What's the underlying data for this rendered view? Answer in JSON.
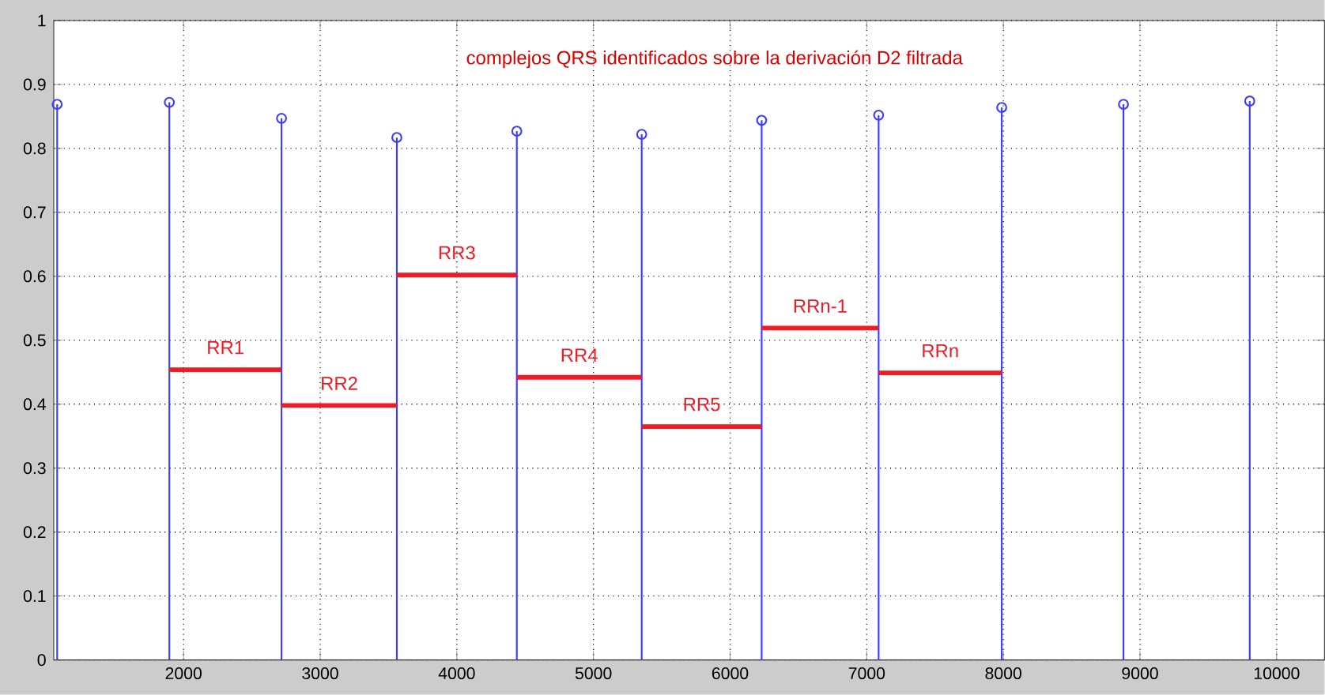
{
  "chart_data": {
    "type": "lollipop",
    "annotations": [
      "complejos QRS identificados sobre la derivación D2 filtrada"
    ],
    "xlim": [
      1050,
      10350
    ],
    "ylim": [
      0,
      1
    ],
    "xticks": [
      2000,
      3000,
      4000,
      5000,
      6000,
      7000,
      8000,
      9000,
      10000
    ],
    "yticks": [
      0,
      0.1,
      0.2,
      0.3,
      0.4,
      0.5,
      0.6,
      0.7,
      0.8,
      0.9,
      1
    ],
    "grid": true,
    "series": [
      {
        "marker": "circle",
        "color": "#3c3cff",
        "x": [
          1075,
          1896,
          2717,
          3561,
          4439,
          5353,
          6231,
          7087,
          7988,
          8879,
          9803
        ],
        "values": [
          0.869,
          0.872,
          0.847,
          0.817,
          0.827,
          0.822,
          0.844,
          0.852,
          0.864,
          0.869,
          0.874
        ]
      },
      {
        "type": "line",
        "name": "RR1",
        "color": "#ee1c25",
        "x": [
          1896,
          2717
        ],
        "values": [
          0.454,
          0.454
        ]
      },
      {
        "type": "line",
        "name": "RR2",
        "color": "#ee1c25",
        "x": [
          2717,
          3561
        ],
        "values": [
          0.398,
          0.398
        ]
      },
      {
        "type": "line",
        "name": "RR3",
        "color": "#ee1c25",
        "x": [
          3561,
          4439
        ],
        "values": [
          0.602,
          0.602
        ]
      },
      {
        "type": "line",
        "name": "RR4",
        "color": "#ee1c25",
        "x": [
          4439,
          5353
        ],
        "values": [
          0.442,
          0.442
        ]
      },
      {
        "type": "line",
        "name": "RR5",
        "color": "#ee1c25",
        "x": [
          5353,
          6231
        ],
        "values": [
          0.365,
          0.365
        ]
      },
      {
        "type": "line",
        "name": "RRn-1",
        "color": "#ee1c25",
        "x": [
          6231,
          7087
        ],
        "values": [
          0.519,
          0.519
        ]
      },
      {
        "type": "line",
        "name": "RRn",
        "color": "#ee1c25",
        "x": [
          7087,
          7988
        ],
        "values": [
          0.449,
          0.449
        ]
      }
    ]
  }
}
